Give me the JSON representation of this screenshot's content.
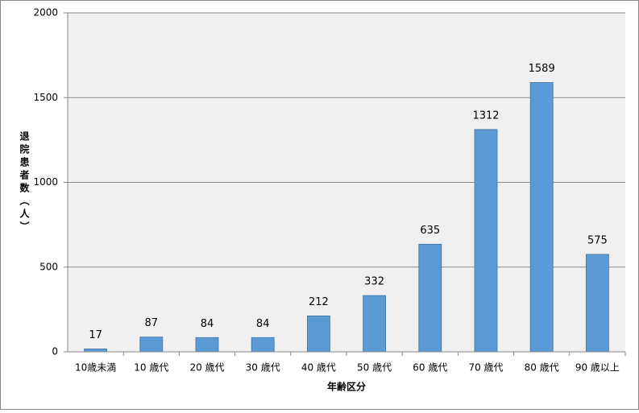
{
  "chart_data": {
    "type": "bar",
    "x_label": "年齢区分",
    "y_label": "退院患者数（人）",
    "categories": [
      "10歳未満",
      "10 歳代",
      "20 歳代",
      "30 歳代",
      "40 歳代",
      "50 歳代",
      "60 歳代",
      "70 歳代",
      "80 歳代",
      "90 歳以上"
    ],
    "values": [
      17,
      87,
      84,
      84,
      212,
      332,
      635,
      1312,
      1589,
      575
    ],
    "color": "#5b9bd5",
    "ylim": [
      0,
      2000
    ],
    "yticks": [
      0,
      500,
      1000,
      1500,
      2000
    ],
    "grid": true
  }
}
